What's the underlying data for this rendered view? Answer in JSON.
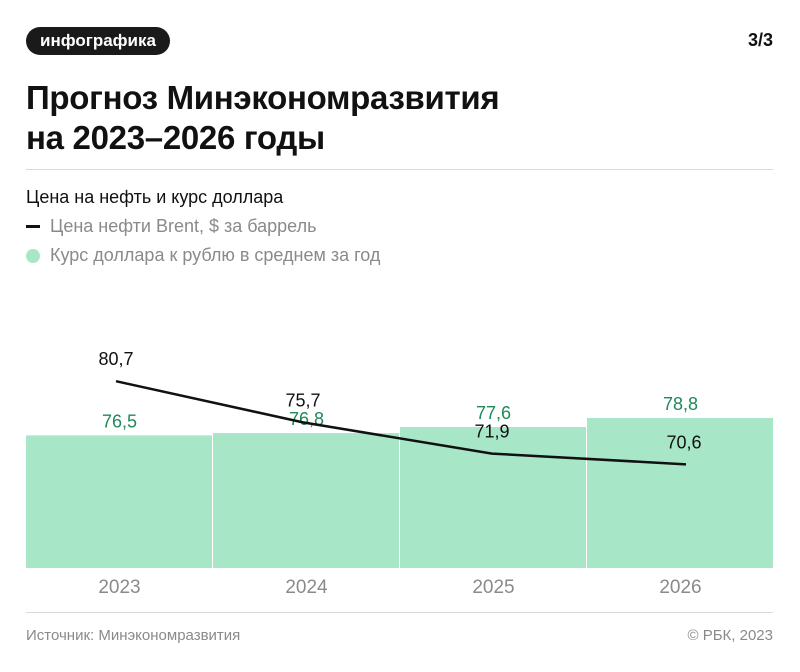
{
  "header": {
    "tag": "инфографика",
    "page": "3/3",
    "title_line1": "Прогноз Минэкономразвития",
    "title_line2": "на 2023–2026 годы"
  },
  "chart_meta": {
    "subtitle": "Цена на нефть и курс доллара",
    "legend_oil": "Цена нефти Brent, $ за баррель",
    "legend_usd": "Курс доллара к рублю в среднем за год"
  },
  "colors": {
    "bar": "#a8e6c8",
    "bar_label": "#1f8a57",
    "line": "#111111"
  },
  "chart_data": {
    "type": "bar",
    "categories": [
      "2023",
      "2024",
      "2025",
      "2026"
    ],
    "series": [
      {
        "name": "Курс доллара к рублю в среднем за год",
        "type": "bar",
        "values": [
          76.5,
          76.8,
          77.6,
          78.8
        ],
        "labels": [
          "76,5",
          "76,8",
          "77,6",
          "78,8"
        ]
      },
      {
        "name": "Цена нефти Brent, $ за баррель",
        "type": "line",
        "values": [
          80.7,
          75.7,
          71.9,
          70.6
        ],
        "labels": [
          "80,7",
          "75,7",
          "71,9",
          "70,6"
        ]
      }
    ]
  },
  "footer": {
    "source": "Источник: Минэкономразвития",
    "copyright": "© РБК, 2023"
  }
}
